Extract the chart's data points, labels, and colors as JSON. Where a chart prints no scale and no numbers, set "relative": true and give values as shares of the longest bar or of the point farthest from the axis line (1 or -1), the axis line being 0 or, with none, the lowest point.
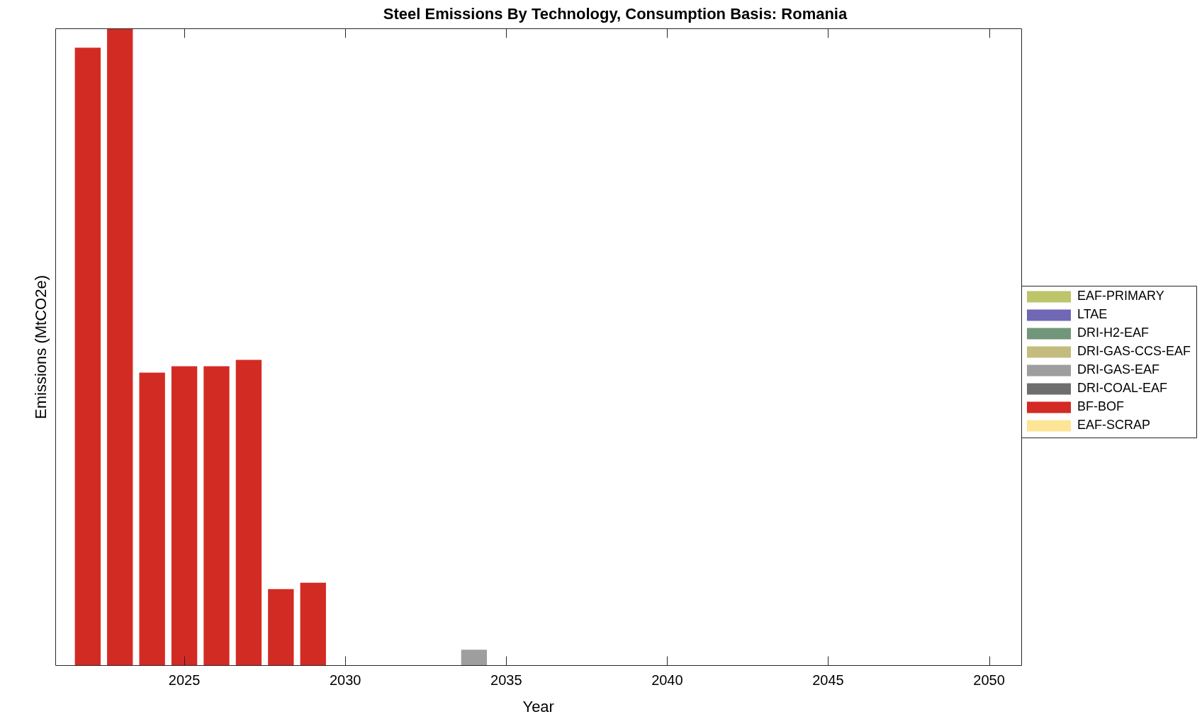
{
  "chart_data": {
    "type": "bar",
    "title": "Steel Emissions By Technology, Consumption Basis: Romania",
    "xlabel": "Year",
    "ylabel": "Emissions (MtCO2e)",
    "x": [
      2022,
      2023,
      2024,
      2025,
      2026,
      2027,
      2028,
      2029,
      2030,
      2031,
      2032,
      2033,
      2034,
      2035,
      2036,
      2037,
      2038,
      2039,
      2040,
      2041,
      2042,
      2043,
      2044,
      2045,
      2046,
      2047,
      2048,
      2049,
      2050
    ],
    "xlim": [
      2021,
      2051
    ],
    "xticks": [
      2025,
      2030,
      2035,
      2040,
      2045,
      2050
    ],
    "relative": true,
    "stacked": true,
    "legend": "right",
    "series": [
      {
        "name": "EAF-SCRAP",
        "color": "#fde597",
        "values": [
          0,
          0,
          0,
          0,
          0,
          0,
          0,
          0,
          0,
          0,
          0,
          0,
          0,
          0,
          0,
          0,
          0,
          0,
          0,
          0,
          0,
          0,
          0,
          0,
          0,
          0,
          0,
          0,
          0
        ]
      },
      {
        "name": "BF-BOF",
        "color": "#d22b24",
        "values": [
          0.97,
          1,
          0.46,
          0.47,
          0.47,
          0.48,
          0.12,
          0.13,
          0,
          0,
          0,
          0,
          0,
          0,
          0,
          0,
          0,
          0,
          0,
          0,
          0,
          0,
          0,
          0,
          0,
          0,
          0,
          0,
          0
        ]
      },
      {
        "name": "DRI-COAL-EAF",
        "color": "#6e6e6e",
        "values": [
          0,
          0,
          0,
          0,
          0,
          0,
          0,
          0,
          0,
          0,
          0,
          0,
          0,
          0,
          0,
          0,
          0,
          0,
          0,
          0,
          0,
          0,
          0,
          0,
          0,
          0,
          0,
          0,
          0
        ]
      },
      {
        "name": "DRI-GAS-EAF",
        "color": "#9e9e9e",
        "values": [
          0,
          0,
          0,
          0,
          0,
          0,
          0,
          0,
          0,
          0,
          0,
          0,
          0.025,
          0,
          0,
          0,
          0,
          0,
          0,
          0,
          0,
          0,
          0,
          0,
          0,
          0,
          0,
          0,
          0
        ]
      },
      {
        "name": "DRI-GAS-CCS-EAF",
        "color": "#c4bb7e",
        "values": [
          0,
          0,
          0,
          0,
          0,
          0,
          0,
          0,
          0,
          0,
          0,
          0,
          0,
          0,
          0,
          0,
          0,
          0,
          0,
          0,
          0,
          0,
          0,
          0,
          0,
          0,
          0,
          0,
          0
        ]
      },
      {
        "name": "DRI-H2-EAF",
        "color": "#72967a",
        "values": [
          0,
          0,
          0,
          0,
          0,
          0,
          0,
          0,
          0,
          0,
          0,
          0,
          0,
          0,
          0,
          0,
          0,
          0,
          0,
          0,
          0,
          0,
          0,
          0,
          0,
          0,
          0,
          0,
          0
        ]
      },
      {
        "name": "LTAE",
        "color": "#7067b5",
        "values": [
          0,
          0,
          0,
          0,
          0,
          0,
          0,
          0,
          0,
          0,
          0,
          0,
          0,
          0,
          0,
          0,
          0,
          0,
          0,
          0,
          0,
          0,
          0,
          0,
          0,
          0,
          0,
          0,
          0
        ]
      },
      {
        "name": "EAF-PRIMARY",
        "color": "#bcc56a",
        "values": [
          0,
          0,
          0,
          0,
          0,
          0,
          0,
          0,
          0,
          0,
          0,
          0,
          0,
          0,
          0,
          0,
          0,
          0,
          0,
          0,
          0,
          0,
          0,
          0,
          0,
          0,
          0,
          0,
          0
        ]
      }
    ]
  }
}
